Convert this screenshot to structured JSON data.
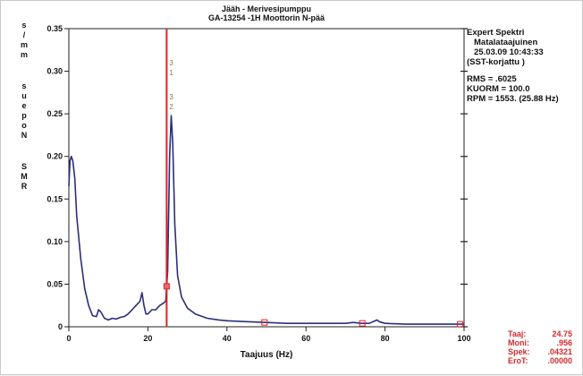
{
  "chart_data": {
    "type": "line",
    "title": [
      "Jääh - Merivesipumppu",
      "GA-13254  -1H    Moottorin N-pää"
    ],
    "xlabel": "Taajuus (Hz)",
    "ylabel": "RMS Nopeus mm/s",
    "xlim": [
      0,
      100
    ],
    "ylim": [
      0,
      0.35
    ],
    "xticks": [
      0,
      20,
      40,
      60,
      80,
      100
    ],
    "yticks": [
      0,
      0.05,
      0.1,
      0.15,
      0.2,
      0.25,
      0.3,
      0.35
    ],
    "ytick_labels": [
      "0",
      "0.05",
      "0.10",
      "0.15",
      "0.20",
      "0.25",
      "0.30",
      "0.35"
    ],
    "grid": false,
    "series": [
      {
        "color": "#2b2e7a",
        "x": [
          0,
          0.3,
          0.6,
          1,
          1.5,
          2,
          3,
          4,
          5,
          6,
          7,
          7.5,
          8,
          9,
          10,
          11,
          12,
          13,
          14,
          15,
          16,
          17,
          18,
          18.5,
          19,
          19.5,
          20,
          21,
          22,
          23,
          24,
          24.5,
          25,
          25.5,
          25.9,
          26.3,
          26.8,
          27.5,
          28.5,
          30,
          32,
          35,
          38,
          40,
          45,
          50,
          55,
          60,
          65,
          70,
          72,
          74,
          76,
          78,
          78.5,
          80,
          85,
          90,
          95,
          100
        ],
        "y": [
          0.165,
          0.195,
          0.2,
          0.195,
          0.175,
          0.13,
          0.08,
          0.045,
          0.025,
          0.013,
          0.012,
          0.02,
          0.018,
          0.01,
          0.008,
          0.01,
          0.009,
          0.011,
          0.012,
          0.015,
          0.02,
          0.025,
          0.03,
          0.04,
          0.025,
          0.015,
          0.015,
          0.02,
          0.02,
          0.025,
          0.028,
          0.03,
          0.065,
          0.2,
          0.248,
          0.215,
          0.12,
          0.06,
          0.035,
          0.022,
          0.015,
          0.01,
          0.008,
          0.007,
          0.006,
          0.005,
          0.004,
          0.004,
          0.004,
          0.004,
          0.005,
          0.004,
          0.004,
          0.008,
          0.006,
          0.004,
          0.003,
          0.003,
          0.003,
          0.003
        ]
      }
    ],
    "cursor": {
      "x": 24.75,
      "color": "#e02020",
      "harmonic_markers_x": [
        24.75,
        49.5,
        74.25,
        99.0
      ],
      "labels": [
        "3",
        "1",
        "3",
        "2"
      ]
    },
    "info_panel": [
      "Expert Spektri",
      "Matalataajuinen",
      "25.03.09   10:43:33",
      "(SST-korjattu )",
      "",
      "RMS =  .6025",
      "KUORM = 100.0",
      "RPM = 1553. (25.88 Hz)"
    ],
    "cursor_readout": [
      {
        "label": "Taaj:",
        "value": "24.75"
      },
      {
        "label": "Moni:",
        "value": ".956"
      },
      {
        "label": "Spek:",
        "value": ".04321"
      },
      {
        "label": "EroT:",
        "value": ".00000"
      }
    ]
  }
}
